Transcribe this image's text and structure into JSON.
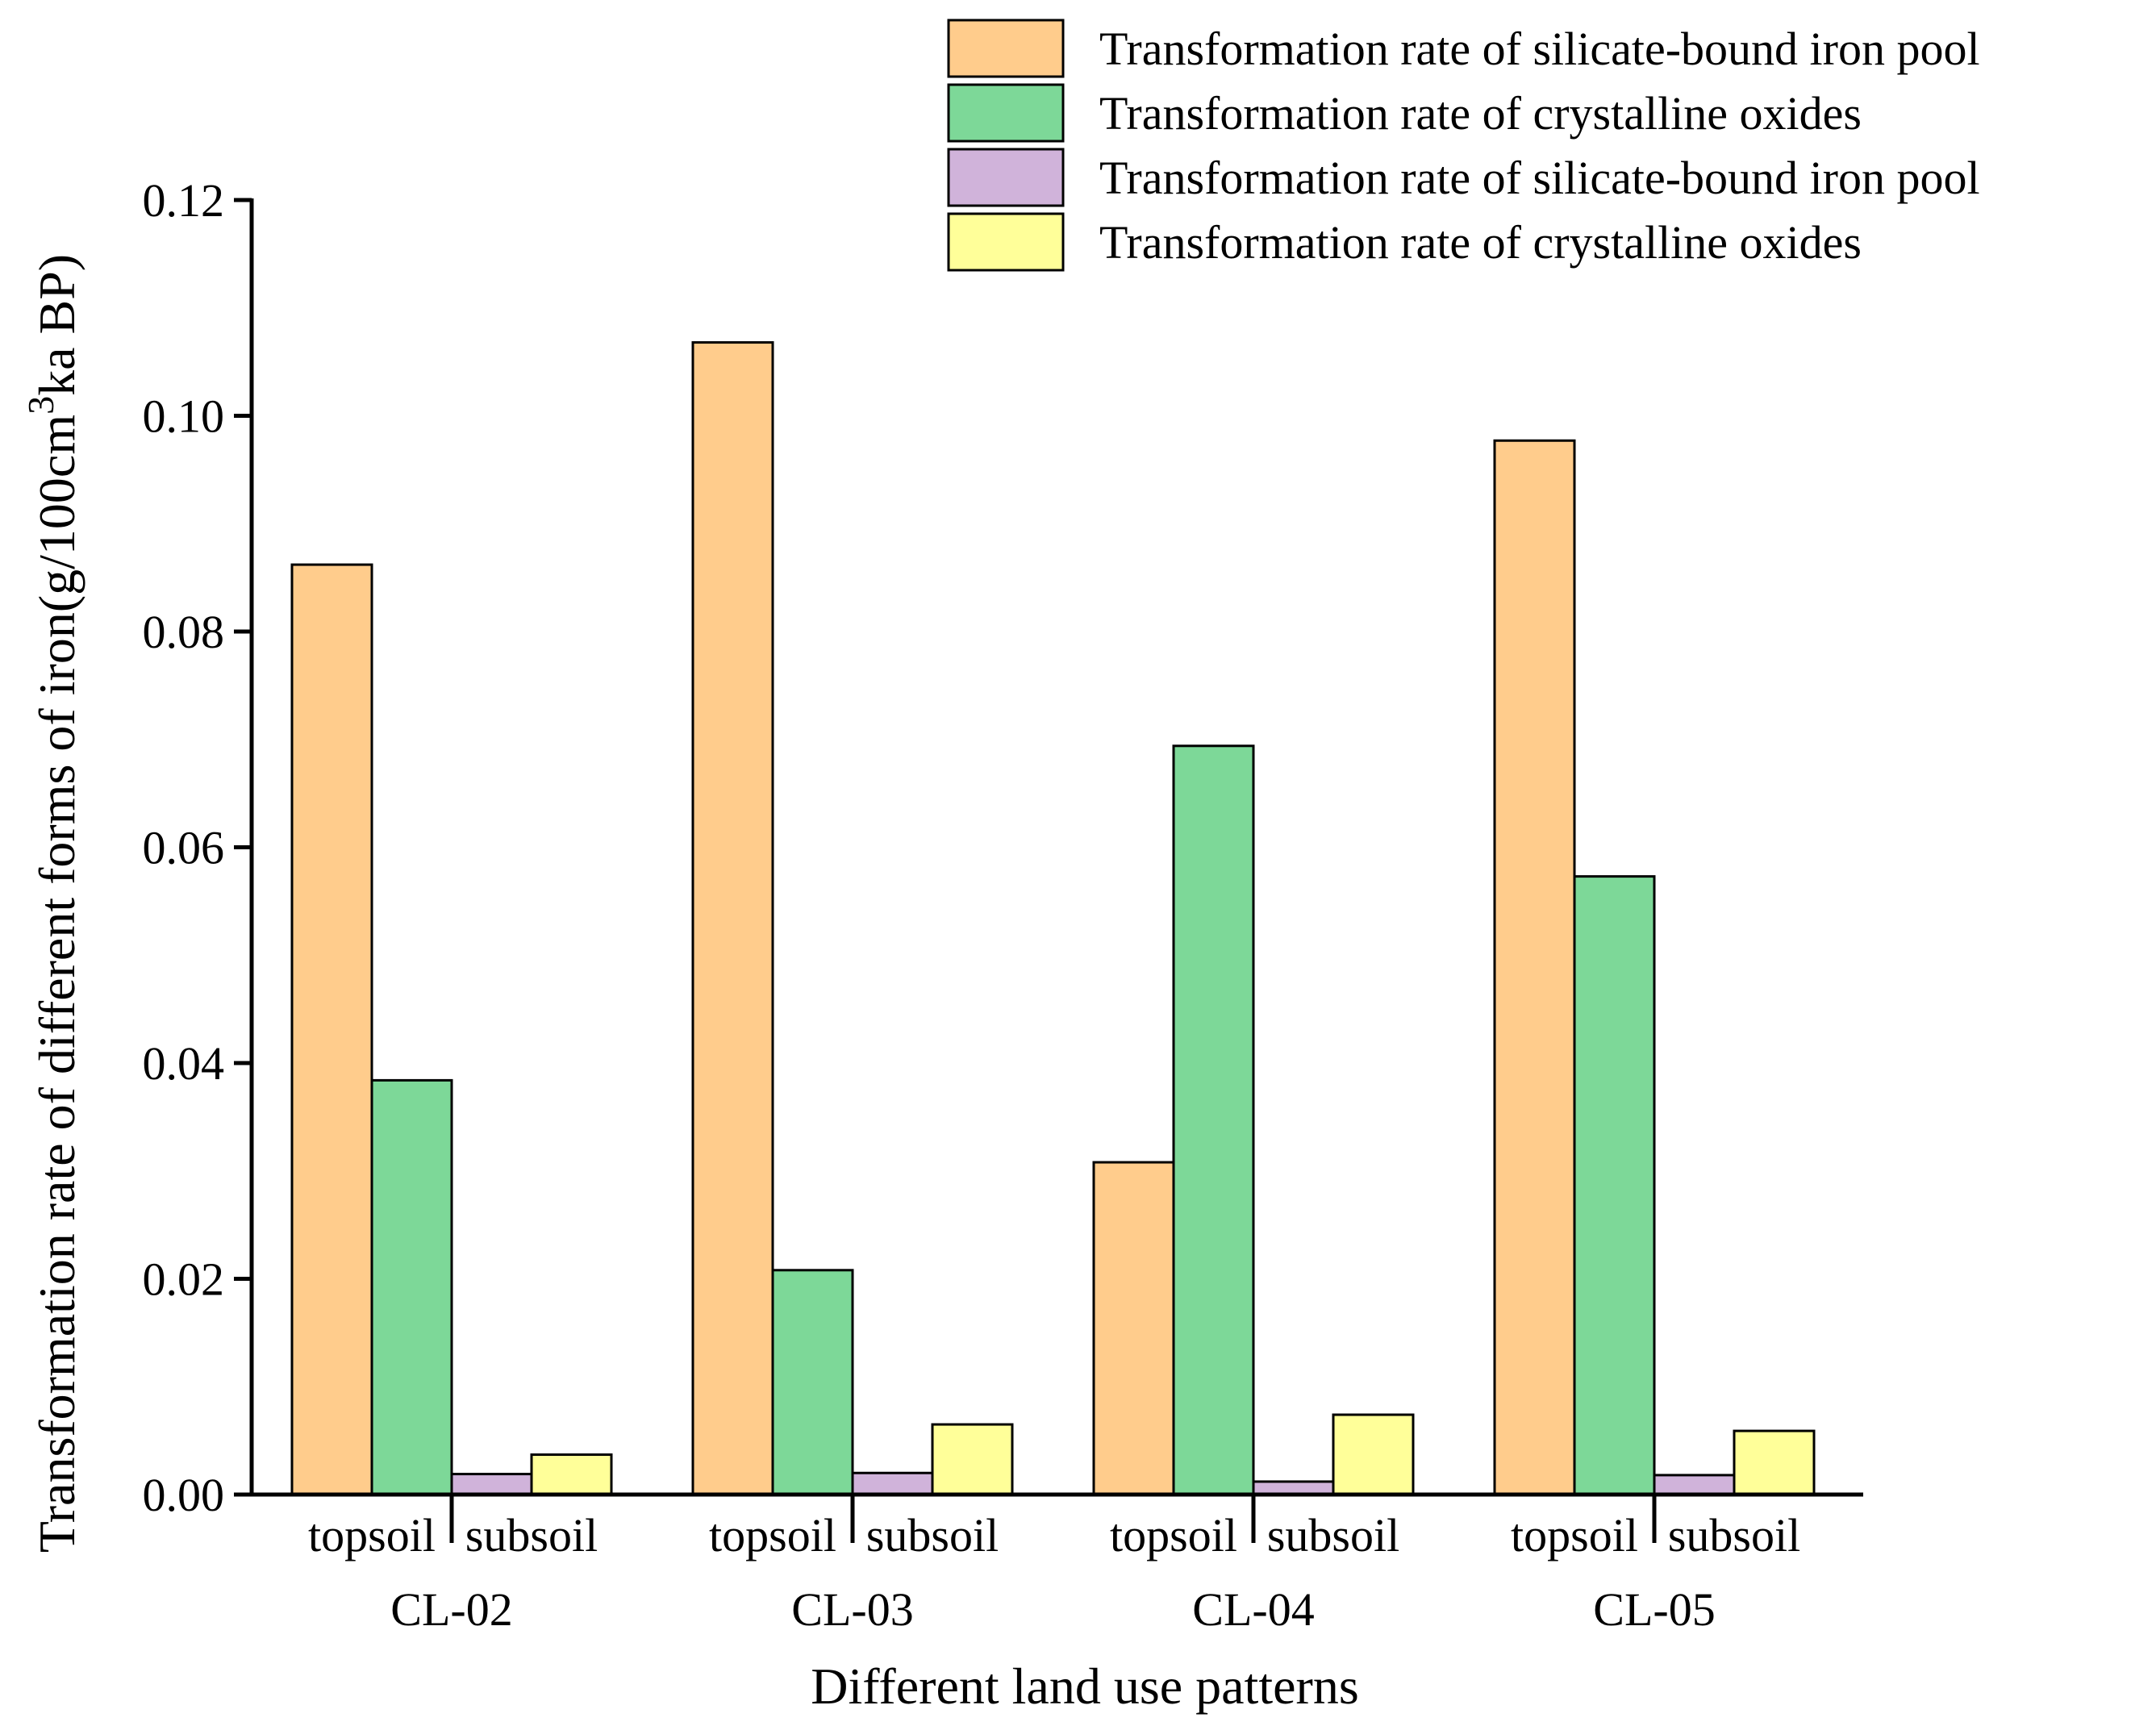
{
  "chart_data": {
    "type": "bar",
    "title": "",
    "xlabel": "Different land use patterns",
    "ylabel": {
      "prefix": "Transformation rate of different forms of iron(g/100cm",
      "superscript": "3",
      "suffix": "ka BP)"
    },
    "ylim": [
      0,
      0.12
    ],
    "yticks": [
      "0.00",
      "0.02",
      "0.04",
      "0.06",
      "0.08",
      "0.10",
      "0.12"
    ],
    "groups": [
      "CL-02",
      "CL-03",
      "CL-04",
      "CL-05"
    ],
    "subgroups": [
      "topsoil",
      "subsoil"
    ],
    "series": [
      {
        "name": "Transformation rate of silicate-bound iron pool",
        "layer": "topsoil",
        "color": "#FFCC8C",
        "values": [
          0.0862,
          0.1068,
          0.0308,
          0.0977
        ]
      },
      {
        "name": "Transformation rate of crystalline oxides",
        "layer": "topsoil",
        "color": "#7DD898",
        "values": [
          0.0384,
          0.0208,
          0.0694,
          0.0573
        ]
      },
      {
        "name": "Transformation rate of silicate-bound iron pool",
        "layer": "subsoil",
        "color": "#D0B3DA",
        "values": [
          0.0019,
          0.002,
          0.0012,
          0.0018
        ]
      },
      {
        "name": "Transformation rate of crystalline oxides",
        "layer": "subsoil",
        "color": "#FFFF99",
        "values": [
          0.0037,
          0.0065,
          0.0074,
          0.0059
        ]
      }
    ],
    "legend": "top-right",
    "grid": false
  }
}
